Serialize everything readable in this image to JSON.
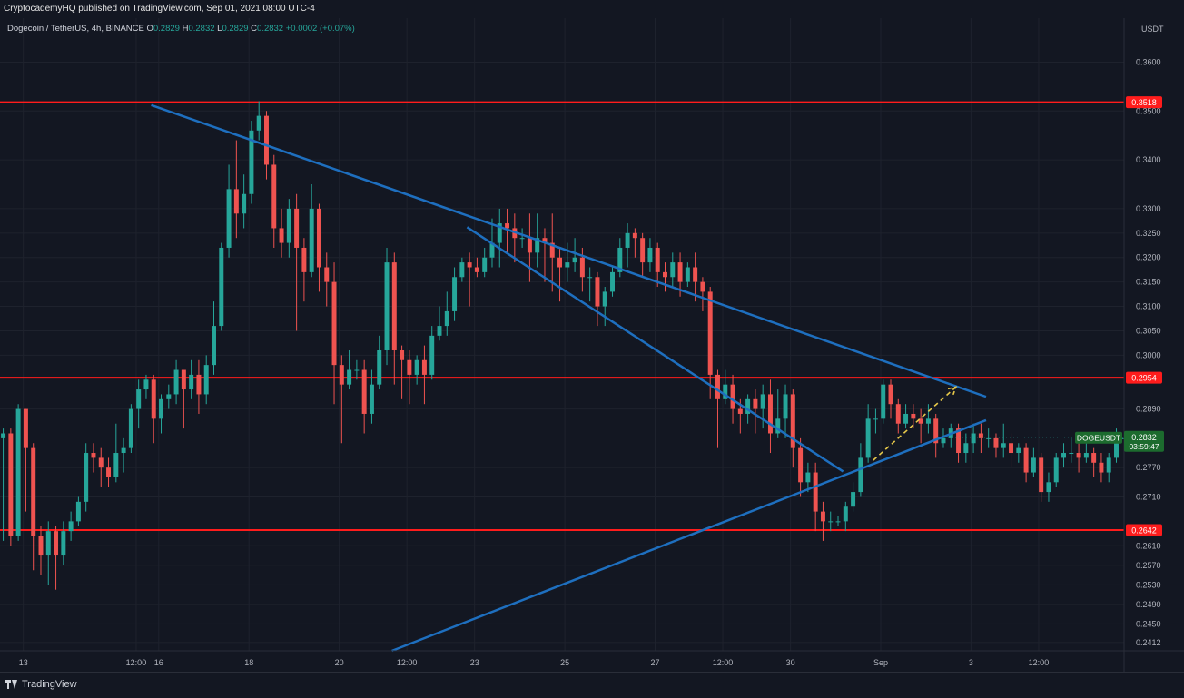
{
  "header": {
    "published": "CryptocademyHQ published on TradingView.com, Sep 01, 2021 08:00 UTC-4"
  },
  "legend": {
    "symbol": "Dogecoin / TetherUS, 4h, BINANCE",
    "o_label": "O",
    "o": "0.2829",
    "h_label": "H",
    "h": "0.2832",
    "l_label": "L",
    "l": "0.2829",
    "c_label": "C",
    "c": "0.2832",
    "change": "+0.0002 (+0.07%)"
  },
  "footer": {
    "brand": "TradingView"
  },
  "colors": {
    "bg": "#131722",
    "up": "#26a69a",
    "down": "#ef5350",
    "support": "#ff1c1c",
    "trend": "#1e6fbf",
    "arrow": "#e6c84a",
    "price_tag": "#1c6b2e"
  },
  "chart_data": {
    "type": "candlestick",
    "symbol": "DOGEUSDT",
    "interval": "4h",
    "currency": "USDT",
    "ylim": [
      0.2395,
      0.369
    ],
    "y_ticks": [
      "0.3600",
      "0.3500",
      "0.3400",
      "0.3300",
      "0.3250",
      "0.3200",
      "0.3150",
      "0.3100",
      "0.3050",
      "0.3000",
      "0.2890",
      "0.2770",
      "0.2710",
      "0.2610",
      "0.2570",
      "0.2530",
      "0.2490",
      "0.2450",
      "0.2412"
    ],
    "x_ticks": [
      "13",
      "12:00",
      "16",
      "18",
      "20",
      "12:00",
      "23",
      "25",
      "27",
      "12:00",
      "30",
      "Sep",
      "3",
      "12:00"
    ],
    "horizontal_levels": [
      {
        "label": "0.3518",
        "value": 0.3518
      },
      {
        "label": "0.2954",
        "value": 0.2954
      },
      {
        "label": "0.2642",
        "value": 0.2642
      }
    ],
    "last_price": {
      "symbol": "DOGEUSDT",
      "value": "0.2832",
      "countdown": "03:59:47"
    },
    "trendlines": [
      {
        "name": "upper-descending",
        "from": {
          "date": "Aug 15 20:00",
          "price": 0.3512
        },
        "to": {
          "date": "Sep 03 08:00",
          "price": 0.2915
        }
      },
      {
        "name": "inner-descending",
        "from": {
          "date": "Aug 22 20:00",
          "price": 0.3262
        },
        "to": {
          "date": "Aug 31 04:00",
          "price": 0.2762
        }
      },
      {
        "name": "ascending-support",
        "from": {
          "date": "Aug 21 04:00",
          "price": 0.2395
        },
        "to": {
          "date": "Sep 03 08:00",
          "price": 0.2867
        }
      }
    ],
    "projection": {
      "from": {
        "date": "Aug 31 20:00",
        "price": 0.2785
      },
      "to": {
        "date": "Sep 02 16:00",
        "price": 0.2935
      }
    },
    "candles": [
      [
        0.279,
        0.281,
        0.275,
        0.282
      ],
      [
        0.281,
        0.283,
        0.28,
        0.293
      ],
      [
        0.283,
        0.284,
        0.262,
        0.285
      ],
      [
        0.284,
        0.263,
        0.261,
        0.285
      ],
      [
        0.263,
        0.289,
        0.262,
        0.29
      ],
      [
        0.289,
        0.281,
        0.268,
        0.289
      ],
      [
        0.281,
        0.263,
        0.256,
        0.282
      ],
      [
        0.263,
        0.259,
        0.255,
        0.265
      ],
      [
        0.259,
        0.264,
        0.253,
        0.266
      ],
      [
        0.264,
        0.259,
        0.252,
        0.265
      ],
      [
        0.259,
        0.264,
        0.257,
        0.266
      ],
      [
        0.264,
        0.266,
        0.262,
        0.268
      ],
      [
        0.266,
        0.27,
        0.265,
        0.271
      ],
      [
        0.27,
        0.28,
        0.268,
        0.282
      ],
      [
        0.28,
        0.279,
        0.276,
        0.282
      ],
      [
        0.279,
        0.277,
        0.273,
        0.281
      ],
      [
        0.277,
        0.275,
        0.273,
        0.279
      ],
      [
        0.275,
        0.28,
        0.274,
        0.286
      ],
      [
        0.28,
        0.281,
        0.276,
        0.283
      ],
      [
        0.281,
        0.289,
        0.28,
        0.29
      ],
      [
        0.289,
        0.293,
        0.285,
        0.295
      ],
      [
        0.293,
        0.295,
        0.291,
        0.296
      ],
      [
        0.295,
        0.287,
        0.282,
        0.296
      ],
      [
        0.287,
        0.291,
        0.284,
        0.292
      ],
      [
        0.291,
        0.292,
        0.289,
        0.294
      ],
      [
        0.292,
        0.297,
        0.29,
        0.299
      ],
      [
        0.297,
        0.293,
        0.285,
        0.297
      ],
      [
        0.293,
        0.296,
        0.291,
        0.299
      ],
      [
        0.296,
        0.292,
        0.288,
        0.299
      ],
      [
        0.292,
        0.298,
        0.29,
        0.3
      ],
      [
        0.298,
        0.306,
        0.296,
        0.311
      ],
      [
        0.306,
        0.322,
        0.305,
        0.323
      ],
      [
        0.322,
        0.334,
        0.32,
        0.339
      ],
      [
        0.334,
        0.329,
        0.324,
        0.344
      ],
      [
        0.329,
        0.333,
        0.326,
        0.337
      ],
      [
        0.333,
        0.346,
        0.331,
        0.348
      ],
      [
        0.346,
        0.349,
        0.344,
        0.352
      ],
      [
        0.349,
        0.339,
        0.336,
        0.35
      ],
      [
        0.339,
        0.326,
        0.322,
        0.341
      ],
      [
        0.326,
        0.323,
        0.32,
        0.33
      ],
      [
        0.323,
        0.33,
        0.32,
        0.332
      ],
      [
        0.33,
        0.322,
        0.305,
        0.333
      ],
      [
        0.322,
        0.317,
        0.311,
        0.324
      ],
      [
        0.317,
        0.33,
        0.316,
        0.335
      ],
      [
        0.33,
        0.318,
        0.313,
        0.331
      ],
      [
        0.318,
        0.315,
        0.31,
        0.321
      ],
      [
        0.315,
        0.298,
        0.29,
        0.319
      ],
      [
        0.298,
        0.294,
        0.282,
        0.3
      ],
      [
        0.294,
        0.297,
        0.293,
        0.301
      ],
      [
        0.297,
        0.297,
        0.295,
        0.299
      ],
      [
        0.297,
        0.288,
        0.284,
        0.299
      ],
      [
        0.288,
        0.294,
        0.286,
        0.297
      ],
      [
        0.294,
        0.301,
        0.293,
        0.304
      ],
      [
        0.301,
        0.319,
        0.298,
        0.322
      ],
      [
        0.319,
        0.301,
        0.294,
        0.321
      ],
      [
        0.301,
        0.299,
        0.291,
        0.302
      ],
      [
        0.299,
        0.296,
        0.29,
        0.301
      ],
      [
        0.296,
        0.299,
        0.294,
        0.3
      ],
      [
        0.299,
        0.296,
        0.29,
        0.302
      ],
      [
        0.296,
        0.304,
        0.295,
        0.306
      ],
      [
        0.304,
        0.306,
        0.303,
        0.31
      ],
      [
        0.306,
        0.309,
        0.304,
        0.313
      ],
      [
        0.309,
        0.316,
        0.307,
        0.318
      ],
      [
        0.316,
        0.319,
        0.315,
        0.32
      ],
      [
        0.319,
        0.318,
        0.31,
        0.321
      ],
      [
        0.318,
        0.317,
        0.316,
        0.32
      ],
      [
        0.317,
        0.32,
        0.316,
        0.322
      ],
      [
        0.32,
        0.323,
        0.318,
        0.328
      ],
      [
        0.323,
        0.327,
        0.318,
        0.33
      ],
      [
        0.327,
        0.326,
        0.321,
        0.33
      ],
      [
        0.326,
        0.324,
        0.319,
        0.329
      ],
      [
        0.324,
        0.324,
        0.322,
        0.326
      ],
      [
        0.324,
        0.321,
        0.315,
        0.329
      ],
      [
        0.321,
        0.324,
        0.318,
        0.329
      ],
      [
        0.324,
        0.323,
        0.315,
        0.326
      ],
      [
        0.323,
        0.32,
        0.313,
        0.329
      ],
      [
        0.32,
        0.318,
        0.311,
        0.322
      ],
      [
        0.318,
        0.319,
        0.315,
        0.323
      ],
      [
        0.319,
        0.32,
        0.317,
        0.324
      ],
      [
        0.32,
        0.316,
        0.313,
        0.322
      ],
      [
        0.316,
        0.316,
        0.311,
        0.318
      ],
      [
        0.316,
        0.31,
        0.306,
        0.317
      ],
      [
        0.31,
        0.313,
        0.306,
        0.314
      ],
      [
        0.313,
        0.317,
        0.312,
        0.318
      ],
      [
        0.317,
        0.322,
        0.316,
        0.324
      ],
      [
        0.322,
        0.325,
        0.318,
        0.327
      ],
      [
        0.325,
        0.324,
        0.32,
        0.326
      ],
      [
        0.324,
        0.319,
        0.316,
        0.325
      ],
      [
        0.319,
        0.322,
        0.317,
        0.324
      ],
      [
        0.322,
        0.317,
        0.314,
        0.323
      ],
      [
        0.317,
        0.316,
        0.313,
        0.319
      ],
      [
        0.316,
        0.319,
        0.314,
        0.321
      ],
      [
        0.319,
        0.315,
        0.312,
        0.321
      ],
      [
        0.315,
        0.318,
        0.314,
        0.319
      ],
      [
        0.318,
        0.315,
        0.311,
        0.321
      ],
      [
        0.315,
        0.313,
        0.309,
        0.316
      ],
      [
        0.313,
        0.296,
        0.291,
        0.314
      ],
      [
        0.296,
        0.291,
        0.281,
        0.297
      ],
      [
        0.291,
        0.294,
        0.29,
        0.297
      ],
      [
        0.294,
        0.289,
        0.286,
        0.296
      ],
      [
        0.289,
        0.288,
        0.284,
        0.291
      ],
      [
        0.288,
        0.291,
        0.286,
        0.292
      ],
      [
        0.291,
        0.289,
        0.284,
        0.293
      ],
      [
        0.289,
        0.292,
        0.285,
        0.294
      ],
      [
        0.292,
        0.284,
        0.28,
        0.295
      ],
      [
        0.284,
        0.287,
        0.283,
        0.293
      ],
      [
        0.287,
        0.292,
        0.283,
        0.294
      ],
      [
        0.292,
        0.281,
        0.277,
        0.293
      ],
      [
        0.281,
        0.274,
        0.271,
        0.283
      ],
      [
        0.274,
        0.276,
        0.272,
        0.278
      ],
      [
        0.276,
        0.268,
        0.264,
        0.278
      ],
      [
        0.268,
        0.266,
        0.262,
        0.27
      ],
      [
        0.266,
        0.266,
        0.264,
        0.268
      ],
      [
        0.266,
        0.266,
        0.265,
        0.267
      ],
      [
        0.266,
        0.269,
        0.264,
        0.27
      ],
      [
        0.269,
        0.272,
        0.268,
        0.274
      ],
      [
        0.272,
        0.279,
        0.271,
        0.282
      ],
      [
        0.279,
        0.287,
        0.278,
        0.29
      ],
      [
        0.287,
        0.287,
        0.284,
        0.289
      ],
      [
        0.287,
        0.294,
        0.286,
        0.295
      ],
      [
        0.294,
        0.29,
        0.287,
        0.295
      ],
      [
        0.29,
        0.286,
        0.284,
        0.291
      ],
      [
        0.286,
        0.288,
        0.285,
        0.29
      ],
      [
        0.288,
        0.287,
        0.285,
        0.29
      ],
      [
        0.287,
        0.286,
        0.282,
        0.289
      ],
      [
        0.286,
        0.287,
        0.284,
        0.29
      ],
      [
        0.287,
        0.282,
        0.279,
        0.288
      ],
      [
        0.282,
        0.283,
        0.281,
        0.285
      ],
      [
        0.283,
        0.285,
        0.281,
        0.286
      ],
      [
        0.285,
        0.28,
        0.278,
        0.286
      ],
      [
        0.28,
        0.282,
        0.278,
        0.284
      ],
      [
        0.282,
        0.284,
        0.28,
        0.286
      ],
      [
        0.284,
        0.283,
        0.28,
        0.286
      ],
      [
        0.283,
        0.283,
        0.281,
        0.285
      ],
      [
        0.283,
        0.281,
        0.279,
        0.284
      ],
      [
        0.281,
        0.282,
        0.279,
        0.286
      ],
      [
        0.282,
        0.28,
        0.277,
        0.284
      ],
      [
        0.28,
        0.281,
        0.278,
        0.282
      ],
      [
        0.281,
        0.276,
        0.274,
        0.282
      ],
      [
        0.276,
        0.279,
        0.275,
        0.281
      ],
      [
        0.279,
        0.272,
        0.27,
        0.28
      ],
      [
        0.272,
        0.274,
        0.27,
        0.276
      ],
      [
        0.274,
        0.279,
        0.273,
        0.28
      ],
      [
        0.279,
        0.28,
        0.277,
        0.282
      ],
      [
        0.28,
        0.28,
        0.278,
        0.283
      ],
      [
        0.28,
        0.279,
        0.276,
        0.282
      ],
      [
        0.279,
        0.28,
        0.278,
        0.283
      ],
      [
        0.28,
        0.278,
        0.275,
        0.281
      ],
      [
        0.278,
        0.276,
        0.274,
        0.28
      ],
      [
        0.276,
        0.279,
        0.274,
        0.28
      ],
      [
        0.279,
        0.283,
        0.278,
        0.285
      ],
      [
        0.283,
        0.283,
        0.283,
        0.283
      ]
    ]
  }
}
